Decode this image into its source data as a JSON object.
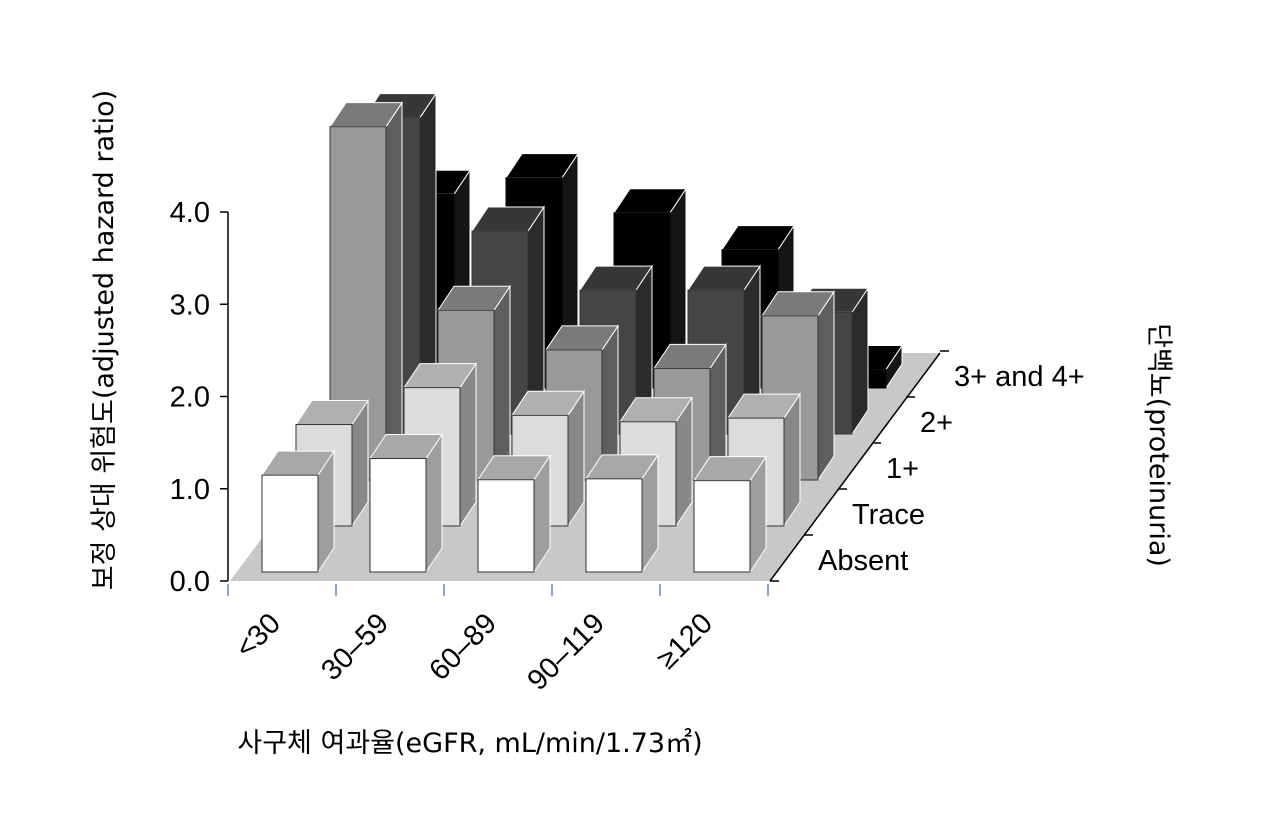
{
  "chart_data": {
    "type": "bar3d",
    "ylabel": "보정 상대 위험도(adjusted hazard ratio)",
    "xlabel": "사구체 여과율(eGFR, mL/min/1.73㎡)",
    "zlabel": "단백뇨(proteinuria)",
    "categories": [
      "<30",
      "30–59",
      "60–89",
      "90–119",
      "≥120"
    ],
    "series": [
      {
        "name": "Absent",
        "color": "#ffffff",
        "values": [
          1.05,
          1.23,
          1.0,
          1.01,
          0.99
        ]
      },
      {
        "name": "Trace",
        "color": "#dcdcdc",
        "values": [
          1.1,
          1.5,
          1.2,
          1.13,
          1.17
        ]
      },
      {
        "name": "1+",
        "color": "#999999",
        "values": [
          3.83,
          1.84,
          1.41,
          1.21,
          1.78
        ]
      },
      {
        "name": "2+",
        "color": "#454545",
        "values": [
          3.43,
          2.2,
          1.56,
          1.56,
          1.32
        ]
      },
      {
        "name": "3+ and 4+",
        "color": "#000000",
        "values": [
          2.1,
          2.28,
          1.9,
          1.5,
          0.2
        ]
      }
    ],
    "ylim": [
      0,
      4
    ],
    "yticks": [
      {
        "value": 0,
        "label": "0.0"
      },
      {
        "value": 1,
        "label": "1.0"
      },
      {
        "value": 2,
        "label": "2.0"
      },
      {
        "value": 3,
        "label": "3.0"
      },
      {
        "value": 4,
        "label": "4.0"
      }
    ]
  }
}
